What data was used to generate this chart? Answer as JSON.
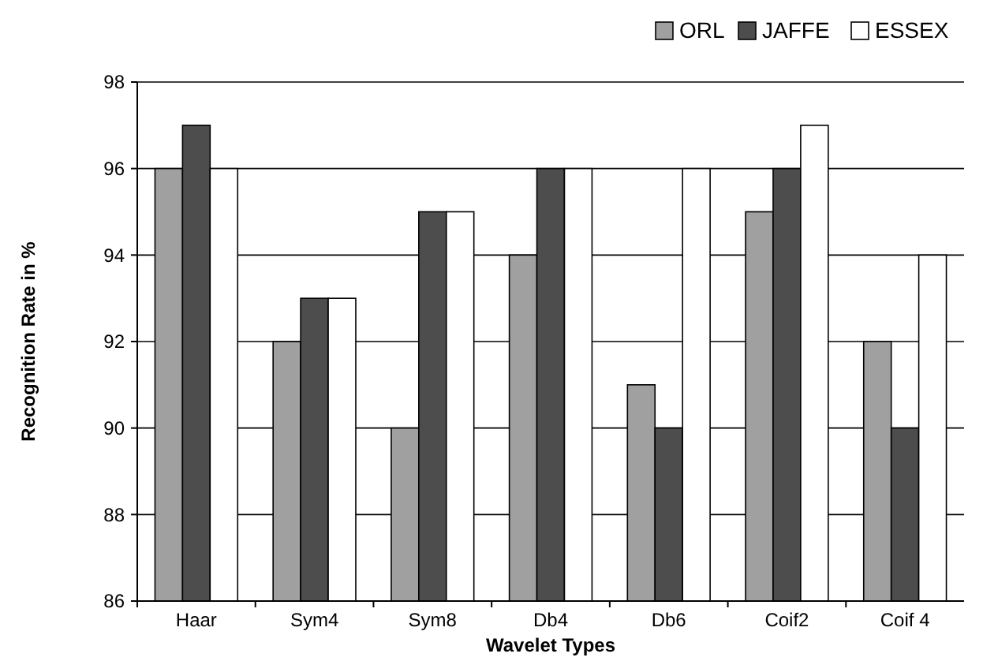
{
  "chart_data": {
    "type": "bar",
    "xlabel": "Wavelet Types",
    "ylabel": "Recognition Rate in %",
    "categories": [
      "Haar",
      "Sym4",
      "Sym8",
      "Db4",
      "Db6",
      "Coif2",
      "Coif 4"
    ],
    "series": [
      {
        "name": "ORL",
        "color": "#a0a0a0",
        "values": [
          96,
          92,
          90,
          94,
          91,
          95,
          92
        ]
      },
      {
        "name": "JAFFE",
        "color": "#4d4d4d",
        "values": [
          97,
          93,
          95,
          96,
          90,
          96,
          90
        ]
      },
      {
        "name": "ESSEX",
        "color": "#ffffff",
        "values": [
          96,
          93,
          95,
          96,
          96,
          97,
          94
        ]
      }
    ],
    "ylim": [
      86,
      98
    ],
    "yticks": [
      86,
      88,
      90,
      92,
      94,
      96,
      98
    ],
    "grid": "y",
    "legend": "top right"
  }
}
